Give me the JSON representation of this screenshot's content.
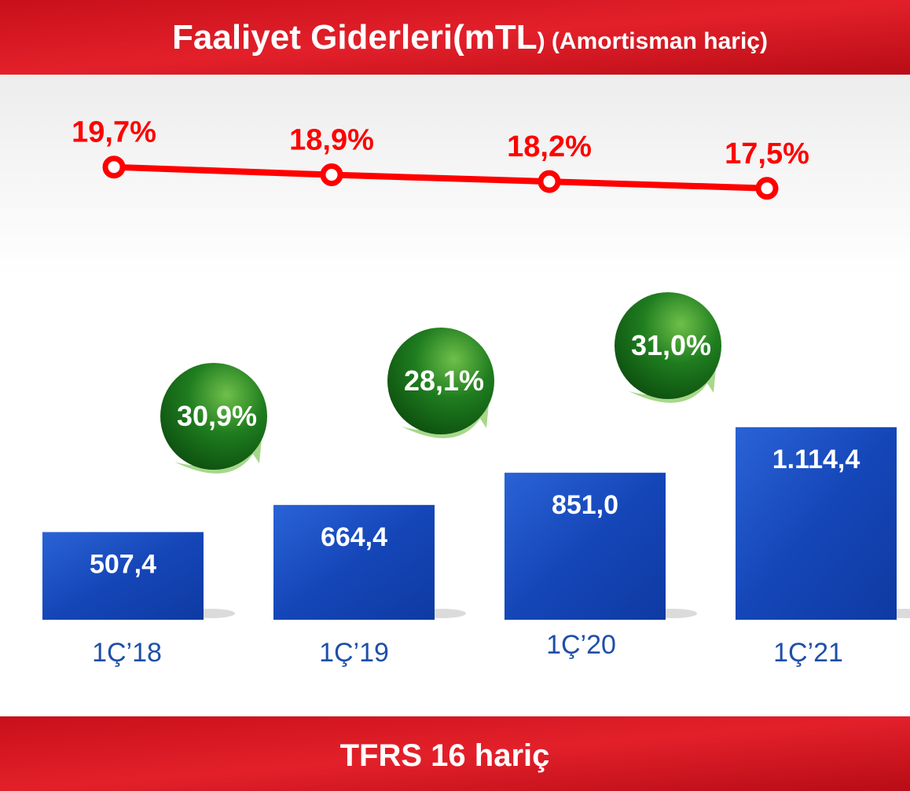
{
  "chart_data": {
    "type": "combo",
    "title": [
      "Faaliyet Giderleri(mTL",
      ") (Amortisman hariç)"
    ],
    "footer": "TFRS 16 hariç",
    "categories": [
      "1Ç’18",
      "1Ç’19",
      "1Ç’20",
      "1Ç’21"
    ],
    "series": [
      {
        "type": "bar",
        "color": "#1a4cc0",
        "values": [
          507.4,
          664.4,
          851.0,
          1114.4
        ],
        "value_labels": [
          "507,4",
          "664,4",
          "851,0",
          "1.114,4"
        ]
      },
      {
        "type": "line",
        "color": "#ff0000",
        "values": [
          19.7,
          18.9,
          18.2,
          17.5
        ],
        "value_labels": [
          "19,7%",
          "18,9%",
          "18,2%",
          "17,5%"
        ]
      }
    ],
    "growth": {
      "color": "#1f7d1f",
      "values": [
        30.9,
        28.1,
        31.0
      ],
      "value_labels": [
        "30,9%",
        "28,1%",
        "31,0%"
      ]
    }
  }
}
